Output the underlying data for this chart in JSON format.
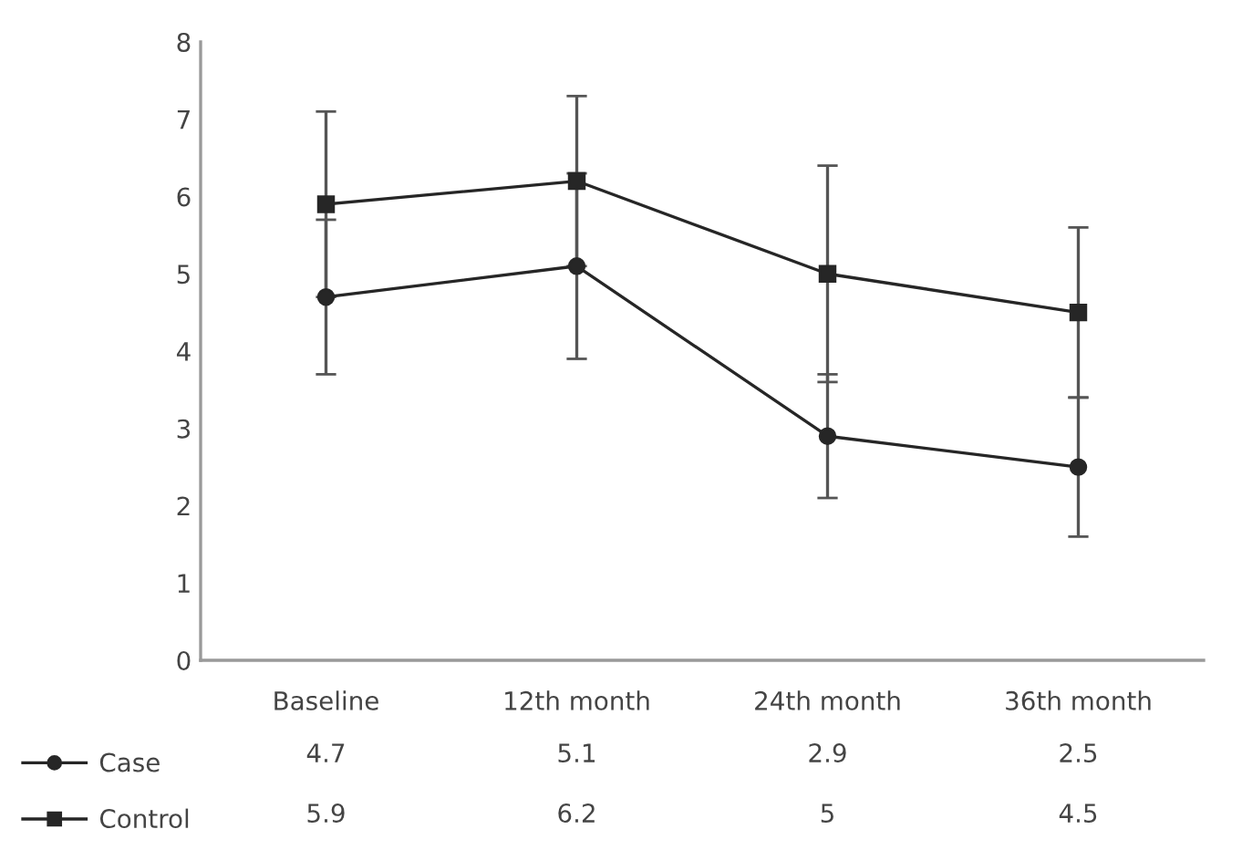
{
  "chart_data": {
    "type": "line",
    "categories": [
      "Baseline",
      "12th month",
      "24th month",
      "36th month"
    ],
    "series": [
      {
        "name": "Case",
        "color": "#262626",
        "marker": "circle",
        "values": [
          4.7,
          5.1,
          2.9,
          2.5
        ],
        "value_labels": [
          "4.7",
          "5.1",
          "2.9",
          "2.5"
        ],
        "errors": [
          1.0,
          1.2,
          0.8,
          0.9
        ]
      },
      {
        "name": "Control",
        "color": "#262626",
        "marker": "square",
        "values": [
          5.9,
          6.2,
          5.0,
          4.5
        ],
        "value_labels": [
          "5.9",
          "6.2",
          "5",
          "4.5"
        ],
        "errors": [
          1.2,
          1.1,
          1.4,
          1.1
        ]
      }
    ],
    "ylim": [
      0,
      8
    ],
    "yticks": [
      0,
      1,
      2,
      3,
      4,
      5,
      6,
      7,
      8
    ],
    "grid": false,
    "legend": "bottom left",
    "line_style": "solid"
  }
}
